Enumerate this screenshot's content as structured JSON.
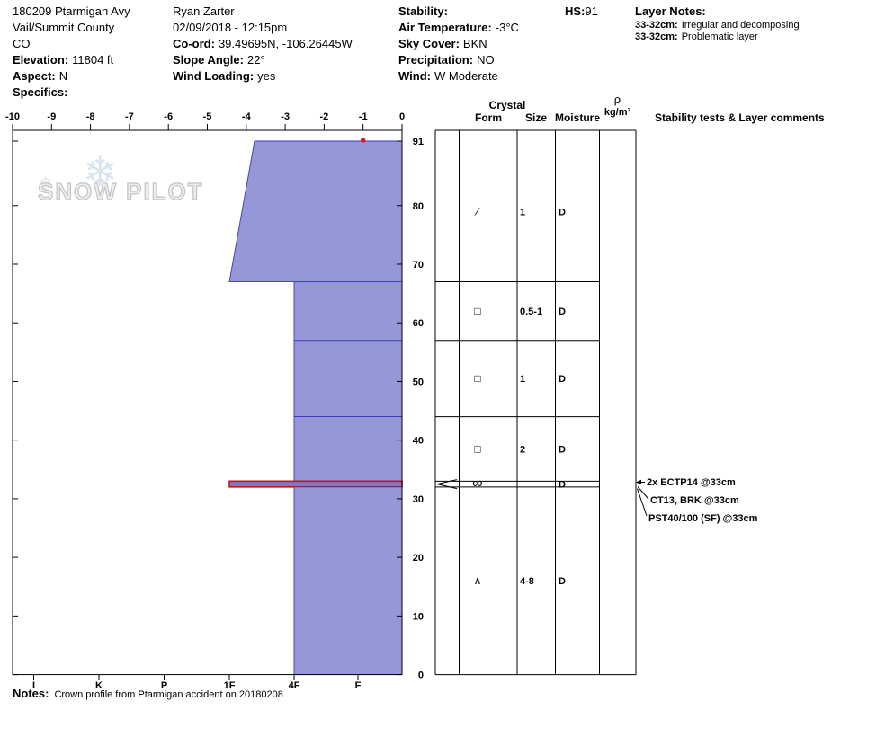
{
  "header": {
    "col1": {
      "title": "180209 Ptarmigan Avy",
      "region": "Vail/Summit County",
      "state": "CO",
      "elevation_label": "Elevation:",
      "elevation_value": "11804 ft",
      "aspect_label": "Aspect:",
      "aspect_value": "N",
      "specifics_label": "Specifics:"
    },
    "col2": {
      "observer": "Ryan Zarter",
      "datetime": "02/09/2018 - 12:15pm",
      "coord_label": "Co-ord:",
      "coord_value": "39.49695N, -106.26445W",
      "slope_label": "Slope Angle:",
      "slope_value": "22°",
      "wind_loading_label": "Wind Loading:",
      "wind_loading_value": "yes"
    },
    "col3": {
      "stability_label": "Stability:",
      "air_temp_label": "Air Temperature:",
      "air_temp_value": "-3°C",
      "sky_label": "Sky Cover:",
      "sky_value": "BKN",
      "precip_label": "Precipitation:",
      "precip_value": "NO",
      "wind_label": "Wind:",
      "wind_value": "W Moderate"
    },
    "col4": {
      "hs_label": "HS:",
      "hs_value": "91"
    },
    "col5": {
      "title": "Layer Notes:",
      "notes": [
        {
          "range": "33-32cm:",
          "text": "Irregular and decomposing"
        },
        {
          "range": "33-32cm:",
          "text": "Problematic layer"
        }
      ]
    }
  },
  "chart_data": {
    "type": "bar",
    "subtype": "snow-profile-hardness",
    "title": "Snow pit profile, total height HS 91 cm",
    "depth_axis": {
      "unit": "cm",
      "max": 91,
      "ticks": [
        91,
        80,
        70,
        60,
        50,
        40,
        30,
        20,
        10,
        0
      ]
    },
    "temp_axis": {
      "unit": "°C",
      "ticks": [
        -10,
        -9,
        -8,
        -7,
        -6,
        -5,
        -4,
        -3,
        -2,
        -1,
        0
      ]
    },
    "hardness_axis": {
      "labels": [
        "I",
        "K",
        "P",
        "1F",
        "4F",
        "F"
      ]
    },
    "temperature_points": [
      {
        "depth": 91,
        "temp": -1
      }
    ],
    "layers": [
      {
        "top_cm": 91,
        "bottom_cm": 67,
        "hardness_top": "1F-",
        "hardness_bottom": "1F",
        "grain_form": "decomposing-fragments",
        "glyph": "∕",
        "size_mm": "1",
        "moisture": "D",
        "flagged": false
      },
      {
        "top_cm": 67,
        "bottom_cm": 57,
        "hardness_top": "4F",
        "hardness_bottom": "4F",
        "grain_form": "faceted-crystals",
        "glyph": "□",
        "size_mm": "0.5-1",
        "moisture": "D",
        "flagged": false
      },
      {
        "top_cm": 57,
        "bottom_cm": 44,
        "hardness_top": "4F",
        "hardness_bottom": "4F",
        "grain_form": "faceted-crystals",
        "glyph": "□",
        "size_mm": "1",
        "moisture": "D",
        "flagged": false
      },
      {
        "top_cm": 44,
        "bottom_cm": 33,
        "hardness_top": "4F",
        "hardness_bottom": "4F",
        "grain_form": "faceted-crystals",
        "glyph": "□",
        "size_mm": "2",
        "moisture": "D",
        "flagged": false
      },
      {
        "top_cm": 33,
        "bottom_cm": 32,
        "hardness_top": "1F",
        "hardness_bottom": "1F",
        "grain_form": "irregular-rounded-clusters",
        "glyph": "∞",
        "size_mm": "",
        "moisture": "D",
        "flagged": true
      },
      {
        "top_cm": 32,
        "bottom_cm": 0,
        "hardness_top": "4F",
        "hardness_bottom": "4F",
        "grain_form": "depth-hoar",
        "glyph": "∧",
        "size_mm": "4-8",
        "moisture": "D",
        "flagged": false
      }
    ],
    "columns": {
      "crystal": "Crystal",
      "form": "Form",
      "size": "Size",
      "moisture": "Moisture",
      "density_rho": "ρ",
      "density_unit": "kg/m³",
      "tests_header": "Stability tests & Layer comments"
    },
    "annotations": [
      {
        "text": "2x ECTP14 @33cm",
        "depth_cm": 33
      },
      {
        "text": "CT13, BRK @33cm",
        "depth_cm": 33
      },
      {
        "text": "PST40/100 (SF) @33cm",
        "depth_cm": 33
      }
    ],
    "colors": {
      "layer_fill": "#9697d6",
      "layer_stroke": "#3a3ac0",
      "flag_fill": "#7a7ac8",
      "flag_stroke": "#cc1111",
      "temp_point": "#cc2222"
    }
  },
  "watermark": {
    "text": "SNOW PILOT",
    "flake": "❄"
  },
  "notes": {
    "label": "Notes:",
    "text": "Crown profile from Ptarmigan accident on 20180208"
  }
}
